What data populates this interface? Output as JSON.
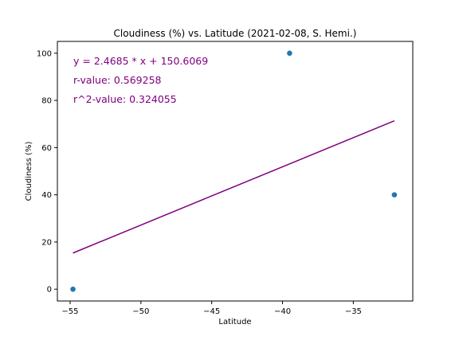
{
  "chart_data": {
    "type": "scatter",
    "title": "Cloudiness (%) vs. Latitude (2021-02-08, S. Hemi.)",
    "xlabel": "Latitude",
    "ylabel": "Cloudiness (%)",
    "xlim": [
      -55.9,
      -30.8
    ],
    "ylim": [
      -5,
      105
    ],
    "x_ticks": [
      -55,
      -50,
      -45,
      -40,
      -35
    ],
    "x_tick_labels": [
      "−55",
      "−50",
      "−45",
      "−40",
      "−35"
    ],
    "y_ticks": [
      0,
      20,
      40,
      60,
      80,
      100
    ],
    "y_tick_labels": [
      "0",
      "20",
      "40",
      "60",
      "80",
      "100"
    ],
    "grid": false,
    "points": [
      {
        "x": -54.8,
        "y": 0
      },
      {
        "x": -39.5,
        "y": 100
      },
      {
        "x": -32.1,
        "y": 40
      }
    ],
    "point_color": "#1f77b4",
    "regression": {
      "x": [
        -54.8,
        -32.1
      ],
      "y": [
        15.33,
        71.37
      ],
      "color": "#800080"
    },
    "annotations": [
      "y = 2.4685 * x + 150.6069",
      "r-value: 0.569258",
      "r^2-value: 0.324055"
    ]
  }
}
